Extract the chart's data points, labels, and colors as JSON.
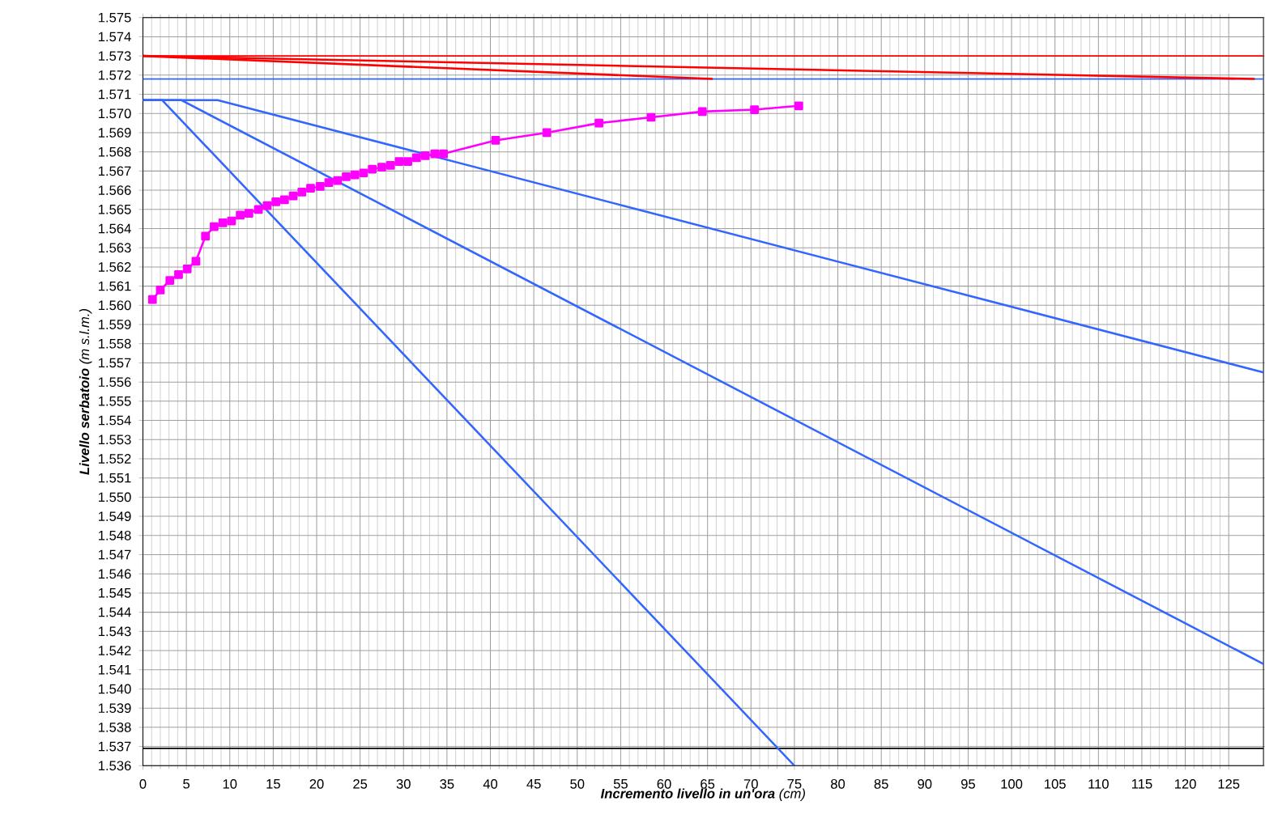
{
  "chart_data": {
    "type": "line",
    "xlabel": "**Incremento livello in un'ora** (cm)",
    "ylabel": "**Livello serbatoio** (m s.l.m.)",
    "xlim": [
      0,
      129
    ],
    "ylim": [
      1.536,
      1.575
    ],
    "xticks": [
      0,
      5,
      10,
      15,
      20,
      25,
      30,
      35,
      40,
      45,
      50,
      55,
      60,
      65,
      70,
      75,
      80,
      85,
      90,
      95,
      100,
      105,
      110,
      115,
      120,
      125
    ],
    "yticks": [
      {
        "value": 1.536,
        "label": "1.536"
      },
      {
        "value": 1.537,
        "label": "1.537"
      },
      {
        "value": 1.538,
        "label": "1.538"
      },
      {
        "value": 1.539,
        "label": "1.539"
      },
      {
        "value": 1.54,
        "label": "1.540"
      },
      {
        "value": 1.541,
        "label": "1.541"
      },
      {
        "value": 1.542,
        "label": "1.542"
      },
      {
        "value": 1.543,
        "label": "1.543"
      },
      {
        "value": 1.544,
        "label": "1.544"
      },
      {
        "value": 1.545,
        "label": "1.545"
      },
      {
        "value": 1.546,
        "label": "1.546"
      },
      {
        "value": 1.547,
        "label": "1.547"
      },
      {
        "value": 1.548,
        "label": "1.548"
      },
      {
        "value": 1.549,
        "label": "1.549"
      },
      {
        "value": 1.55,
        "label": "1.550"
      },
      {
        "value": 1.551,
        "label": "1.551"
      },
      {
        "value": 1.552,
        "label": "1.552"
      },
      {
        "value": 1.553,
        "label": "1.553"
      },
      {
        "value": 1.554,
        "label": "1.554"
      },
      {
        "value": 1.555,
        "label": "1.555"
      },
      {
        "value": 1.556,
        "label": "1.556"
      },
      {
        "value": 1.557,
        "label": "1.557"
      },
      {
        "value": 1.558,
        "label": "1.558"
      },
      {
        "value": 1.559,
        "label": "1.559"
      },
      {
        "value": 1.56,
        "label": "1.560"
      },
      {
        "value": 1.561,
        "label": "1.561"
      },
      {
        "value": 1.562,
        "label": "1.562"
      },
      {
        "value": 1.563,
        "label": "1.563"
      },
      {
        "value": 1.564,
        "label": "1.564"
      },
      {
        "value": 1.565,
        "label": "1.565"
      },
      {
        "value": 1.566,
        "label": "1.566"
      },
      {
        "value": 1.567,
        "label": "1.567"
      },
      {
        "value": 1.568,
        "label": "1.568"
      },
      {
        "value": 1.569,
        "label": "1.569"
      },
      {
        "value": 1.57,
        "label": "1.570"
      },
      {
        "value": 1.571,
        "label": "1.571"
      },
      {
        "value": 1.572,
        "label": "1.572"
      },
      {
        "value": 1.573,
        "label": "1.573"
      },
      {
        "value": 1.574,
        "label": "1.574"
      },
      {
        "value": 1.575,
        "label": "1.575"
      }
    ],
    "grid": true,
    "ref_lines": [
      {
        "axis": "y",
        "value": 1.573,
        "color": "#ff0000"
      },
      {
        "axis": "y",
        "value": 1.5718,
        "color": "#3366ff"
      },
      {
        "axis": "y",
        "value": 1.5369,
        "color": "#000000"
      }
    ],
    "series": [
      {
        "color": "#ff0000",
        "marker": "none",
        "x": [
          0,
          128
        ],
        "values": [
          1.573,
          1.5718
        ]
      },
      {
        "color": "#ff0000",
        "marker": "none",
        "x": [
          0,
          65.6
        ],
        "values": [
          1.573,
          1.5718
        ]
      },
      {
        "color": "#3366ff",
        "marker": "none",
        "x": [
          0,
          2.2,
          75
        ],
        "values": [
          1.5707,
          1.5707,
          1.536
        ]
      },
      {
        "color": "#3366ff",
        "marker": "none",
        "x": [
          0,
          4.4,
          129
        ],
        "values": [
          1.5707,
          1.5707,
          1.5413
        ]
      },
      {
        "color": "#3366ff",
        "marker": "none",
        "x": [
          0,
          8.6,
          129
        ],
        "values": [
          1.5707,
          1.5707,
          1.5565
        ]
      },
      {
        "color": "#ff00ff",
        "marker": "square",
        "x": [
          1.1,
          2.0,
          3.1,
          4.1,
          5.1,
          6.1,
          7.2,
          8.2,
          9.2,
          10.2,
          11.2,
          12.2,
          13.3,
          14.3,
          15.3,
          16.3,
          17.3,
          18.3,
          19.3,
          20.4,
          21.4,
          22.4,
          23.4,
          24.4,
          25.4,
          26.4,
          27.5,
          28.5,
          29.5,
          30.5,
          31.5,
          32.5,
          33.6,
          34.6,
          40.6,
          46.5,
          52.5,
          58.5,
          64.4,
          70.4,
          75.5
        ],
        "values": [
          1.5603,
          1.5608,
          1.5613,
          1.5616,
          1.5619,
          1.5623,
          1.5636,
          1.5641,
          1.5643,
          1.5644,
          1.5647,
          1.5648,
          1.565,
          1.5652,
          1.5654,
          1.5655,
          1.5657,
          1.5659,
          1.5661,
          1.5662,
          1.5664,
          1.5665,
          1.5667,
          1.5668,
          1.5669,
          1.5671,
          1.5672,
          1.5673,
          1.5675,
          1.5675,
          1.5677,
          1.5678,
          1.5679,
          1.5679,
          1.5686,
          1.569,
          1.5695,
          1.5698,
          1.5701,
          1.5702,
          1.5704
        ]
      }
    ]
  }
}
